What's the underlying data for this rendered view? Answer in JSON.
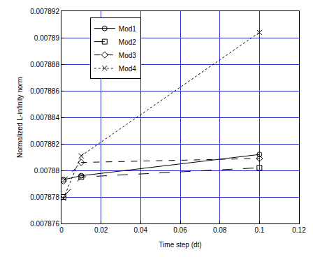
{
  "chart_data": {
    "type": "line",
    "x_label": "Time step (dt)",
    "y_label": "Normalized L-infinity norm",
    "xlim": [
      0,
      0.12
    ],
    "xticks": [
      0,
      0.02,
      0.04,
      0.06,
      0.08,
      0.1,
      0.12
    ],
    "ylim": [
      0.007876,
      0.007892
    ],
    "yticks": [
      0.007876,
      0.007878,
      0.00788,
      0.007882,
      0.007884,
      0.007886,
      0.007888,
      0.00789,
      0.007892
    ],
    "grid": true,
    "legend": "upper left",
    "series": [
      {
        "name": "Mod1",
        "color": "#000000",
        "marker": "circle",
        "line_style": "solid",
        "x": [
          0.001,
          0.01,
          0.1
        ],
        "values": [
          0.0078793,
          0.0078796,
          0.0078812
        ]
      },
      {
        "name": "Mod2",
        "color": "#000000",
        "marker": "square",
        "line_style": "longdash",
        "x": [
          0.001,
          0.01,
          0.1
        ],
        "values": [
          0.007878,
          0.0078795,
          0.0078802
        ]
      },
      {
        "name": "Mod3",
        "color": "#000000",
        "marker": "diamond",
        "line_style": "dash",
        "x": [
          0.001,
          0.01,
          0.1
        ],
        "values": [
          0.0078792,
          0.0078806,
          0.0078809
        ]
      },
      {
        "name": "Mod4",
        "color": "#000000",
        "marker": "x",
        "line_style": "dot",
        "x": [
          0.001,
          0.01,
          0.1
        ],
        "values": [
          0.0078779,
          0.0078811,
          0.0078904
        ]
      }
    ]
  }
}
